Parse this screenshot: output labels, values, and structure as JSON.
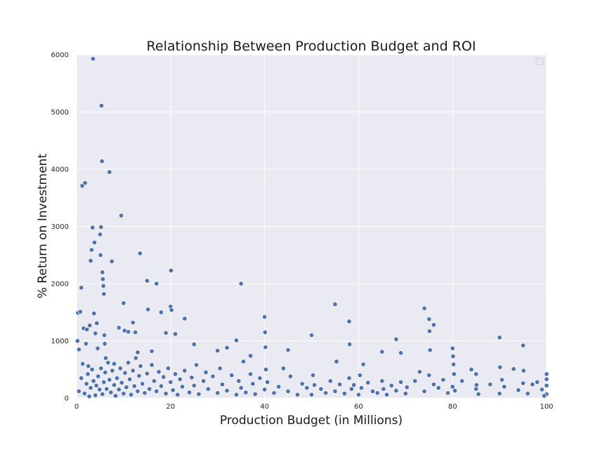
{
  "chart_data": {
    "type": "scatter",
    "title": "Relationship Between Production Budget and ROI",
    "xlabel": "Production Budget (in Millions)",
    "ylabel": "% Return on Investment",
    "xlim": [
      0,
      100
    ],
    "ylim": [
      0,
      6000
    ],
    "xticks": [
      0,
      20,
      40,
      60,
      80,
      100
    ],
    "yticks": [
      0,
      1000,
      2000,
      3000,
      4000,
      5000,
      6000
    ],
    "grid": true,
    "legend": "top-right",
    "colors": {
      "background": "#eaeaf2",
      "grid": "#ffffff",
      "point": "#4c72b0",
      "point_edge": "#ffffff"
    },
    "points": [
      [
        0.2,
        1000
      ],
      [
        0.3,
        1490
      ],
      [
        0.5,
        850
      ],
      [
        0.8,
        1510
      ],
      [
        1,
        1930
      ],
      [
        1.2,
        3710
      ],
      [
        1.5,
        1220
      ],
      [
        1.8,
        3760
      ],
      [
        2,
        950
      ],
      [
        2.2,
        1200
      ],
      [
        2.5,
        560
      ],
      [
        2.8,
        1270
      ],
      [
        3,
        2400
      ],
      [
        3.2,
        2590
      ],
      [
        3.4,
        2980
      ],
      [
        3.5,
        5930
      ],
      [
        3.7,
        1480
      ],
      [
        3.8,
        2720
      ],
      [
        4,
        1130
      ],
      [
        4.3,
        1310
      ],
      [
        4.5,
        870
      ],
      [
        5,
        2860
      ],
      [
        5.1,
        2500
      ],
      [
        5.2,
        2990
      ],
      [
        5.3,
        5110
      ],
      [
        5.4,
        4140
      ],
      [
        5.5,
        2200
      ],
      [
        5.6,
        2080
      ],
      [
        5.7,
        1960
      ],
      [
        5.8,
        1820
      ],
      [
        5.9,
        1100
      ],
      [
        6,
        950
      ],
      [
        6.2,
        700
      ],
      [
        7,
        3950
      ],
      [
        7.5,
        2390
      ],
      [
        8,
        600
      ],
      [
        9,
        1230
      ],
      [
        9.5,
        3190
      ],
      [
        10,
        1660
      ],
      [
        10.2,
        1180
      ],
      [
        11,
        1160
      ],
      [
        12,
        1320
      ],
      [
        12.5,
        1150
      ],
      [
        13,
        800
      ],
      [
        13.5,
        2530
      ],
      [
        15,
        2050
      ],
      [
        15.2,
        1550
      ],
      [
        16,
        820
      ],
      [
        17,
        2000
      ],
      [
        18,
        1500
      ],
      [
        19,
        1140
      ],
      [
        20,
        1600
      ],
      [
        20.1,
        2230
      ],
      [
        20.2,
        1540
      ],
      [
        21,
        1120
      ],
      [
        23,
        1390
      ],
      [
        25,
        940
      ],
      [
        30,
        830
      ],
      [
        32,
        880
      ],
      [
        34,
        1010
      ],
      [
        35,
        2000
      ],
      [
        37,
        740
      ],
      [
        40,
        1420
      ],
      [
        40.1,
        1150
      ],
      [
        40.2,
        890
      ],
      [
        45,
        840
      ],
      [
        50,
        1100
      ],
      [
        55,
        1640
      ],
      [
        58,
        1340
      ],
      [
        58.1,
        940
      ],
      [
        61,
        590
      ],
      [
        65,
        810
      ],
      [
        68,
        1030
      ],
      [
        69,
        790
      ],
      [
        74,
        1570
      ],
      [
        75,
        1380
      ],
      [
        75.1,
        1170
      ],
      [
        75.2,
        840
      ],
      [
        76,
        1280
      ],
      [
        80,
        870
      ],
      [
        80.1,
        730
      ],
      [
        80.2,
        590
      ],
      [
        80.3,
        420
      ],
      [
        85,
        420
      ],
      [
        85.1,
        230
      ],
      [
        90,
        1060
      ],
      [
        90.1,
        540
      ],
      [
        95,
        920
      ],
      [
        95.1,
        480
      ],
      [
        100,
        420
      ],
      [
        0.5,
        120
      ],
      [
        1,
        350
      ],
      [
        1.3,
        600
      ],
      [
        1.7,
        80
      ],
      [
        2.1,
        250
      ],
      [
        2.4,
        420
      ],
      [
        2.7,
        30
      ],
      [
        3,
        180
      ],
      [
        3.3,
        500
      ],
      [
        3.6,
        300
      ],
      [
        4,
        50
      ],
      [
        4.2,
        220
      ],
      [
        4.6,
        380
      ],
      [
        4.9,
        150
      ],
      [
        5.2,
        520
      ],
      [
        5.5,
        70
      ],
      [
        5.8,
        280
      ],
      [
        6.1,
        450
      ],
      [
        6.4,
        160
      ],
      [
        6.7,
        620
      ],
      [
        7,
        320
      ],
      [
        7.3,
        100
      ],
      [
        7.6,
        480
      ],
      [
        8,
        230
      ],
      [
        8.3,
        40
      ],
      [
        8.6,
        350
      ],
      [
        9,
        150
      ],
      [
        9.3,
        520
      ],
      [
        9.6,
        270
      ],
      [
        10,
        80
      ],
      [
        10.3,
        440
      ],
      [
        10.6,
        190
      ],
      [
        11,
        620
      ],
      [
        11.3,
        330
      ],
      [
        11.6,
        60
      ],
      [
        12,
        480
      ],
      [
        12.3,
        210
      ],
      [
        12.6,
        700
      ],
      [
        13,
        120
      ],
      [
        13.3,
        390
      ],
      [
        13.6,
        560
      ],
      [
        14,
        250
      ],
      [
        14.5,
        90
      ],
      [
        15,
        430
      ],
      [
        15.5,
        160
      ],
      [
        16,
        580
      ],
      [
        16.5,
        300
      ],
      [
        17,
        120
      ],
      [
        17.5,
        460
      ],
      [
        18,
        210
      ],
      [
        18.5,
        370
      ],
      [
        19,
        80
      ],
      [
        19.5,
        520
      ],
      [
        20,
        280
      ],
      [
        20.5,
        140
      ],
      [
        21,
        420
      ],
      [
        21.5,
        60
      ],
      [
        22,
        330
      ],
      [
        22.5,
        200
      ],
      [
        23,
        480
      ],
      [
        24,
        100
      ],
      [
        24.5,
        360
      ],
      [
        25,
        220
      ],
      [
        25.5,
        580
      ],
      [
        26,
        70
      ],
      [
        27,
        300
      ],
      [
        27.5,
        450
      ],
      [
        28,
        160
      ],
      [
        29,
        380
      ],
      [
        30,
        90
      ],
      [
        30.5,
        520
      ],
      [
        31,
        240
      ],
      [
        32,
        130
      ],
      [
        33,
        400
      ],
      [
        34,
        60
      ],
      [
        34.5,
        300
      ],
      [
        35,
        180
      ],
      [
        35.5,
        640
      ],
      [
        36,
        100
      ],
      [
        37,
        420
      ],
      [
        37.5,
        250
      ],
      [
        38,
        70
      ],
      [
        39,
        350
      ],
      [
        40,
        150
      ],
      [
        40.3,
        500
      ],
      [
        40.6,
        280
      ],
      [
        42,
        90
      ],
      [
        43,
        200
      ],
      [
        44,
        520
      ],
      [
        45,
        120
      ],
      [
        45.5,
        380
      ],
      [
        47,
        60
      ],
      [
        48,
        250
      ],
      [
        49,
        180
      ],
      [
        50,
        60
      ],
      [
        50.3,
        400
      ],
      [
        50.6,
        230
      ],
      [
        52,
        160
      ],
      [
        53,
        90
      ],
      [
        54,
        300
      ],
      [
        55,
        120
      ],
      [
        55.3,
        640
      ],
      [
        56,
        240
      ],
      [
        57,
        80
      ],
      [
        58,
        350
      ],
      [
        58.5,
        160
      ],
      [
        59,
        230
      ],
      [
        60,
        60
      ],
      [
        60.3,
        400
      ],
      [
        60.6,
        180
      ],
      [
        62,
        270
      ],
      [
        63,
        120
      ],
      [
        64,
        90
      ],
      [
        65,
        300
      ],
      [
        65.3,
        160
      ],
      [
        66,
        60
      ],
      [
        67,
        220
      ],
      [
        68,
        130
      ],
      [
        69,
        280
      ],
      [
        70,
        80
      ],
      [
        70.3,
        190
      ],
      [
        72,
        300
      ],
      [
        73,
        460
      ],
      [
        74,
        120
      ],
      [
        75,
        400
      ],
      [
        76,
        240
      ],
      [
        77,
        180
      ],
      [
        78,
        320
      ],
      [
        79,
        90
      ],
      [
        80,
        200
      ],
      [
        80.5,
        130
      ],
      [
        82,
        300
      ],
      [
        84,
        500
      ],
      [
        85,
        160
      ],
      [
        85.5,
        70
      ],
      [
        88,
        240
      ],
      [
        90,
        80
      ],
      [
        90.5,
        320
      ],
      [
        91,
        200
      ],
      [
        93,
        510
      ],
      [
        94,
        140
      ],
      [
        95,
        260
      ],
      [
        96,
        80
      ],
      [
        98,
        280
      ],
      [
        99,
        150
      ],
      [
        100,
        70
      ],
      [
        100,
        220
      ],
      [
        100,
        330
      ],
      [
        99.5,
        40
      ],
      [
        97,
        240
      ]
    ]
  }
}
